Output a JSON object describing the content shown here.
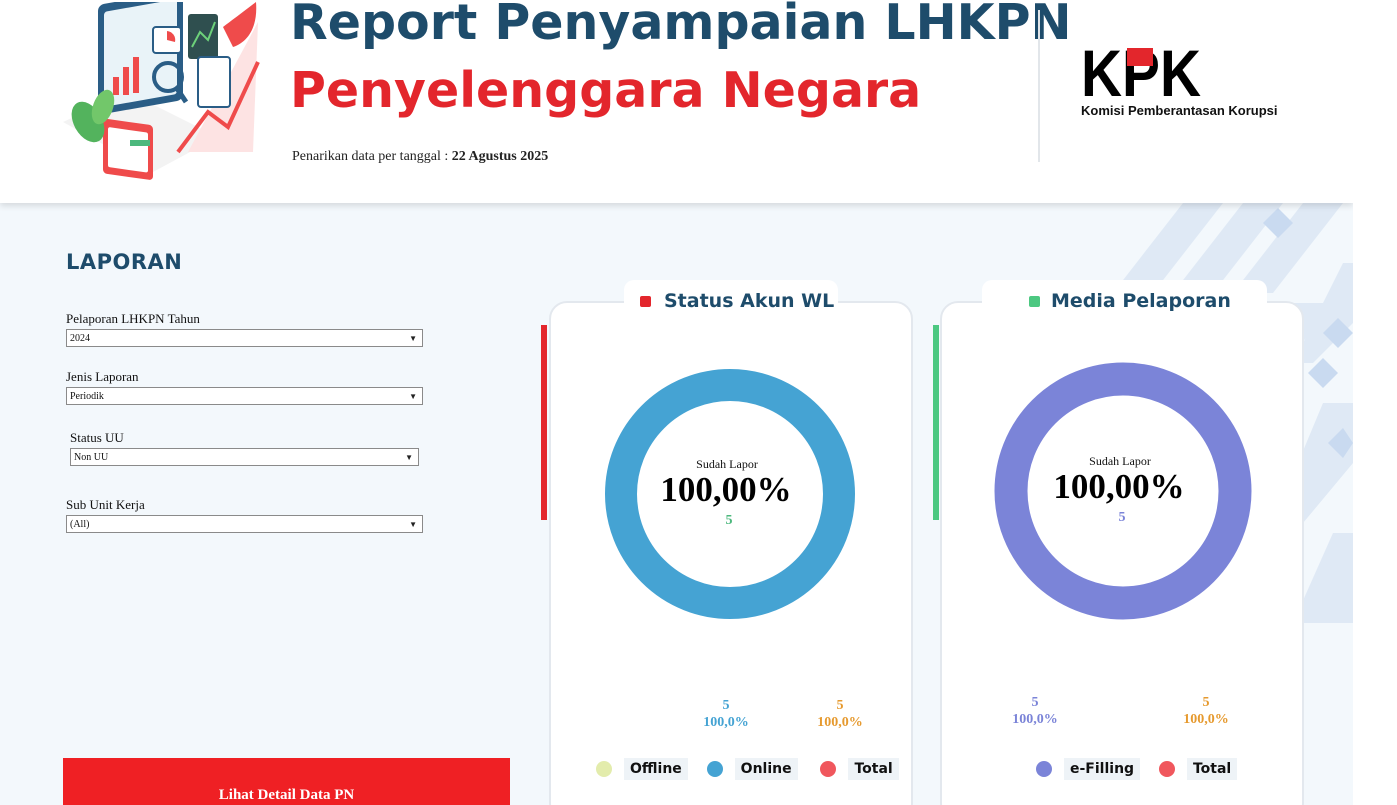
{
  "header": {
    "title_line1": "Report Penyampaian LHKPN",
    "title_line2": "Penyelenggara Negara",
    "data_date_prefix": "Penarikan data per tanggal : ",
    "data_date_value": "22 Agustus 2025",
    "logo_text": "KPK",
    "logo_subtitle": "Komisi Pemberantasan Korupsi"
  },
  "sidebar": {
    "heading": "LAPORAN",
    "filters": [
      {
        "label": "Pelaporan LHKPN Tahun",
        "value": "2024"
      },
      {
        "label": "Jenis Laporan",
        "value": "Periodik"
      },
      {
        "label": "Status UU",
        "value": "Non UU"
      },
      {
        "label": "Sub Unit Kerja",
        "value": "(All)"
      }
    ],
    "detail_button": "Lihat Detail Data PN"
  },
  "status_akun": {
    "title": "Status Akun WL",
    "center_label": "Sudah Lapor",
    "center_pct": "100,00%",
    "center_count": "5",
    "stat_online_count": "5",
    "stat_online_pct": "100,0%",
    "stat_total_count": "5",
    "stat_total_pct": "100,0%",
    "legend": [
      "Offline",
      "Online",
      "Total"
    ]
  },
  "media_pelaporan": {
    "title": "Media Pelaporan",
    "center_label": "Sudah Lapor",
    "center_pct": "100,00%",
    "center_count": "5",
    "stat_efilling_count": "5",
    "stat_efilling_pct": "100,0%",
    "stat_total_count": "5",
    "stat_total_pct": "100,0%",
    "legend": [
      "e-Filling",
      "Total"
    ]
  },
  "colors": {
    "navy": "#1e4c6b",
    "red": "#e3262c",
    "online_blue": "#45a3d3",
    "efilling_purple": "#7b84d8",
    "offline_yellow": "#e3ecac",
    "total_red": "#f0575d",
    "orange": "#e69a2f",
    "green": "#4cb87d"
  },
  "chart_data": [
    {
      "type": "pie",
      "title": "Status Akun WL",
      "categories": [
        "Offline",
        "Online"
      ],
      "values": [
        0,
        5
      ],
      "total": 5
    },
    {
      "type": "pie",
      "title": "Media Pelaporan",
      "categories": [
        "e-Filling"
      ],
      "values": [
        5
      ],
      "total": 5
    }
  ]
}
